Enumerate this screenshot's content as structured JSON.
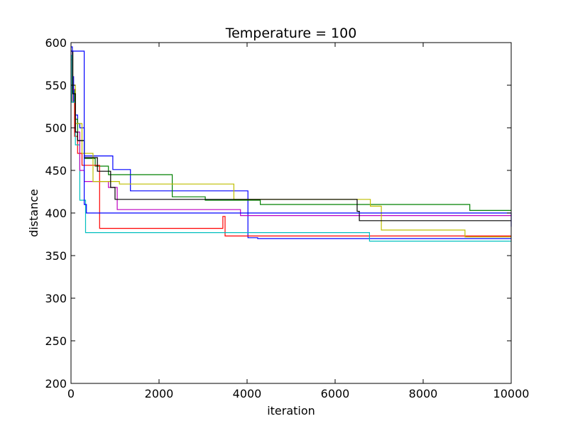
{
  "chart_data": {
    "type": "line",
    "title": "Temperature = 100",
    "xlabel": "iteration",
    "ylabel": "distance",
    "xlim": [
      0,
      10000
    ],
    "ylim": [
      200,
      600
    ],
    "xticks": [
      0,
      2000,
      4000,
      6000,
      8000,
      10000
    ],
    "yticks": [
      200,
      250,
      300,
      350,
      400,
      450,
      500,
      550,
      600
    ],
    "grid": false,
    "legend": "none",
    "series": [
      {
        "color": "#0000ff",
        "step": true,
        "x": [
          0,
          30,
          60,
          100,
          150,
          200,
          300,
          950,
          1350,
          3020,
          4000,
          4020,
          4200,
          4240,
          10000
        ],
        "y": [
          595,
          560,
          530,
          515,
          505,
          500,
          467,
          451,
          426,
          426,
          426,
          371,
          371,
          370,
          370
        ]
      },
      {
        "color": "#008000",
        "step": true,
        "x": [
          0,
          40,
          80,
          150,
          300,
          550,
          850,
          2300,
          3050,
          4300,
          4550,
          9060,
          10000
        ],
        "y": [
          590,
          545,
          510,
          485,
          464,
          455,
          445,
          419,
          415,
          410,
          410,
          403,
          403
        ]
      },
      {
        "color": "#ff0000",
        "step": true,
        "x": [
          0,
          30,
          80,
          150,
          250,
          650,
          3350,
          3450,
          3500,
          4250,
          10000
        ],
        "y": [
          580,
          530,
          490,
          470,
          456,
          382,
          382,
          396,
          373,
          373,
          373
        ]
      },
      {
        "color": "#00bfbf",
        "step": true,
        "x": [
          0,
          20,
          100,
          200,
          330,
          6780,
          10000
        ],
        "y": [
          585,
          530,
          480,
          415,
          377,
          367,
          367
        ]
      },
      {
        "color": "#bf00bf",
        "step": true,
        "x": [
          0,
          40,
          100,
          200,
          300,
          850,
          1050,
          3800,
          3850,
          10000
        ],
        "y": [
          590,
          545,
          495,
          450,
          437,
          430,
          404,
          404,
          397,
          397
        ]
      },
      {
        "color": "#bfbf00",
        "step": true,
        "x": [
          0,
          40,
          100,
          250,
          500,
          1100,
          3700,
          6800,
          7050,
          8950,
          10000
        ],
        "y": [
          590,
          550,
          505,
          470,
          437,
          434,
          416,
          408,
          380,
          372,
          372
        ]
      },
      {
        "color": "#000000",
        "step": true,
        "x": [
          0,
          40,
          100,
          150,
          300,
          600,
          900,
          1000,
          6500,
          6550,
          10000
        ],
        "y": [
          590,
          540,
          495,
          485,
          465,
          449,
          430,
          416,
          402,
          391,
          391
        ]
      },
      {
        "color": "#0000ff",
        "step": true,
        "x": [
          0,
          300,
          350,
          3800,
          4200,
          10000
        ],
        "y": [
          590,
          410,
          400,
          400,
          400,
          384
        ]
      }
    ]
  }
}
